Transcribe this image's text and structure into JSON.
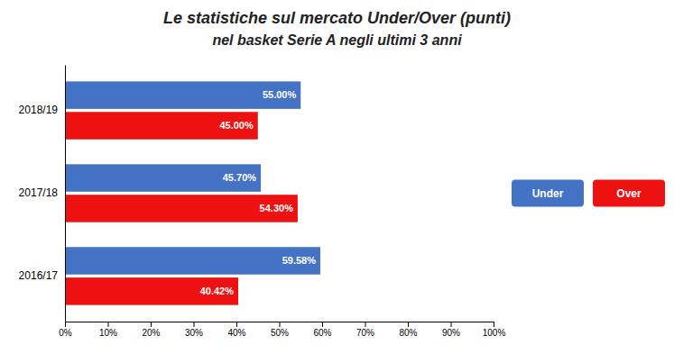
{
  "chart_data": {
    "type": "bar",
    "orientation": "horizontal",
    "title": "Le statistiche sul mercato Under/Over (punti)",
    "subtitle": "nel basket Serie A negli ultimi 3 anni",
    "categories": [
      "2018/19",
      "2017/18",
      "2016/17"
    ],
    "series": [
      {
        "name": "Under",
        "color": "#4472C4",
        "values": [
          55.0,
          45.7,
          59.58
        ],
        "value_labels": [
          "55.00%",
          "45.70%",
          "59.58%"
        ]
      },
      {
        "name": "Over",
        "color": "#EE1111",
        "values": [
          45.0,
          54.3,
          40.42
        ],
        "value_labels": [
          "45.00%",
          "54.30%",
          "40.42%"
        ]
      }
    ],
    "xlim": [
      0,
      100
    ],
    "xticks": [
      {
        "value": 0,
        "label": "0%"
      },
      {
        "value": 10,
        "label": "10%"
      },
      {
        "value": 20,
        "label": "20%"
      },
      {
        "value": 30,
        "label": "30%"
      },
      {
        "value": 40,
        "label": "40%"
      },
      {
        "value": 50,
        "label": "50%"
      },
      {
        "value": 60,
        "label": "60%"
      },
      {
        "value": 70,
        "label": "70%"
      },
      {
        "value": 80,
        "label": "80%"
      },
      {
        "value": 90,
        "label": "90%"
      },
      {
        "value": 100,
        "label": "100%"
      }
    ],
    "data_labels": true,
    "legend": "right",
    "grid": false
  }
}
